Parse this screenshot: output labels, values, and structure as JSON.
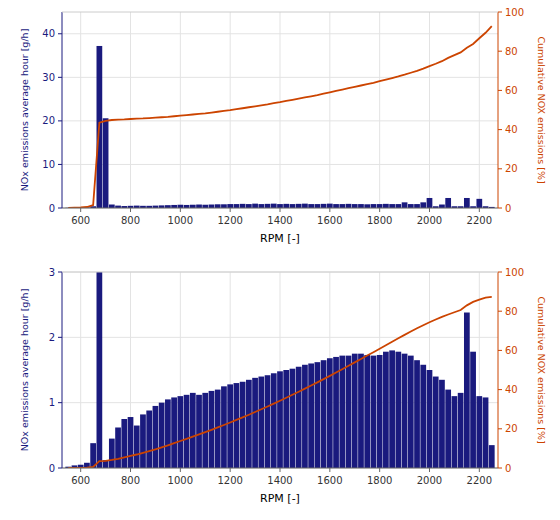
{
  "chart_data": [
    {
      "type": "bar",
      "x": [
        550,
        575,
        600,
        625,
        650,
        675,
        700,
        725,
        750,
        775,
        800,
        825,
        850,
        875,
        900,
        925,
        950,
        975,
        1000,
        1025,
        1050,
        1075,
        1100,
        1125,
        1150,
        1175,
        1200,
        1225,
        1250,
        1275,
        1300,
        1325,
        1350,
        1375,
        1400,
        1425,
        1450,
        1475,
        1500,
        1525,
        1550,
        1575,
        1600,
        1625,
        1650,
        1675,
        1700,
        1725,
        1750,
        1775,
        1800,
        1825,
        1850,
        1875,
        1900,
        1925,
        1950,
        1975,
        2000,
        2025,
        2050,
        2075,
        2100,
        2125,
        2150,
        2175,
        2200,
        2225,
        2250
      ],
      "series": [
        {
          "type": "bar",
          "color": "#1a1a7e",
          "values": [
            0.05,
            0.08,
            0.1,
            0.15,
            0.4,
            37.2,
            20.6,
            0.8,
            0.55,
            0.45,
            0.5,
            0.55,
            0.5,
            0.5,
            0.55,
            0.6,
            0.65,
            0.7,
            0.75,
            0.7,
            0.75,
            0.8,
            0.75,
            0.8,
            0.85,
            0.85,
            0.9,
            0.9,
            0.95,
            0.9,
            1.0,
            0.9,
            0.95,
            1.0,
            0.9,
            0.95,
            0.9,
            0.95,
            1.0,
            0.9,
            0.9,
            0.95,
            1.0,
            0.9,
            0.9,
            0.95,
            0.9,
            0.9,
            0.85,
            0.9,
            0.9,
            0.95,
            0.9,
            0.9,
            1.3,
            0.9,
            0.9,
            1.3,
            2.3,
            0.4,
            0.8,
            2.3,
            0.4,
            0.4,
            2.3,
            0.4,
            2.1,
            0.4,
            0.25
          ]
        },
        {
          "type": "line",
          "axis": "y2",
          "color": "#cc4400",
          "values": [
            0.1,
            0.2,
            0.3,
            0.5,
            1.5,
            43.5,
            44.5,
            44.9,
            45.1,
            45.2,
            45.4,
            45.6,
            45.7,
            45.9,
            46.1,
            46.3,
            46.5,
            46.8,
            47.1,
            47.4,
            47.7,
            48.0,
            48.3,
            48.7,
            49.1,
            49.5,
            49.9,
            50.4,
            50.9,
            51.4,
            51.9,
            52.4,
            52.9,
            53.5,
            54.0,
            54.6,
            55.2,
            55.8,
            56.4,
            57.0,
            57.6,
            58.3,
            59.0,
            59.7,
            60.4,
            61.1,
            61.8,
            62.5,
            63.2,
            63.9,
            64.7,
            65.5,
            66.3,
            67.1,
            68.0,
            69.0,
            70.0,
            71.1,
            72.4,
            73.6,
            74.9,
            76.6,
            78.0,
            79.4,
            81.8,
            83.7,
            86.6,
            89.4,
            92.8
          ]
        }
      ],
      "xlabel": "RPM [-]",
      "ylabel": "NOx emissions average hour [g/h]",
      "y2label": "Cumulative NOX emissions [%]",
      "xlim": [
        525,
        2275
      ],
      "xticks": [
        600,
        800,
        1000,
        1200,
        1400,
        1600,
        1800,
        2000,
        2200
      ],
      "ylim": [
        0,
        45
      ],
      "yticks": [
        0,
        10,
        20,
        30,
        40
      ],
      "y2lim": [
        0,
        100
      ],
      "y2ticks": [
        0,
        20,
        40,
        60,
        80,
        100
      ],
      "grid": true
    },
    {
      "type": "bar",
      "x": [
        550,
        575,
        600,
        625,
        650,
        675,
        700,
        725,
        750,
        775,
        800,
        825,
        850,
        875,
        900,
        925,
        950,
        975,
        1000,
        1025,
        1050,
        1075,
        1100,
        1125,
        1150,
        1175,
        1200,
        1225,
        1250,
        1275,
        1300,
        1325,
        1350,
        1375,
        1400,
        1425,
        1450,
        1475,
        1500,
        1525,
        1550,
        1575,
        1600,
        1625,
        1650,
        1675,
        1700,
        1725,
        1750,
        1775,
        1800,
        1825,
        1850,
        1875,
        1900,
        1925,
        1950,
        1975,
        2000,
        2025,
        2050,
        2075,
        2100,
        2125,
        2150,
        2175,
        2200,
        2225,
        2250
      ],
      "series": [
        {
          "type": "bar",
          "color": "#1a1a7e",
          "values": [
            0.02,
            0.04,
            0.05,
            0.08,
            0.38,
            3.0,
            0.12,
            0.45,
            0.62,
            0.75,
            0.78,
            0.65,
            0.82,
            0.88,
            0.95,
            1.0,
            1.05,
            1.08,
            1.1,
            1.12,
            1.15,
            1.12,
            1.15,
            1.18,
            1.2,
            1.25,
            1.28,
            1.3,
            1.32,
            1.35,
            1.38,
            1.4,
            1.42,
            1.45,
            1.48,
            1.5,
            1.52,
            1.55,
            1.58,
            1.6,
            1.62,
            1.65,
            1.68,
            1.7,
            1.72,
            1.72,
            1.75,
            1.75,
            1.73,
            1.72,
            1.73,
            1.78,
            1.8,
            1.78,
            1.75,
            1.72,
            1.65,
            1.58,
            1.5,
            1.4,
            1.35,
            1.2,
            1.1,
            1.15,
            2.38,
            1.78,
            1.1,
            1.08,
            0.35
          ]
        },
        {
          "type": "line",
          "axis": "y2",
          "color": "#cc4400",
          "values": [
            0.02,
            0.06,
            0.11,
            0.19,
            0.57,
            3.52,
            3.64,
            4.09,
            4.71,
            5.46,
            6.24,
            6.89,
            7.71,
            8.59,
            9.54,
            10.54,
            11.59,
            12.67,
            13.77,
            14.89,
            16.04,
            17.16,
            18.31,
            19.49,
            20.69,
            21.94,
            23.22,
            24.52,
            25.84,
            27.19,
            28.57,
            29.97,
            31.39,
            32.84,
            34.32,
            35.82,
            37.34,
            38.89,
            40.47,
            42.07,
            43.69,
            45.34,
            46.99,
            48.69,
            50.41,
            52.13,
            53.88,
            55.63,
            57.36,
            59.08,
            60.81,
            62.61,
            64.41,
            66.19,
            67.91,
            69.63,
            71.28,
            72.86,
            74.36,
            75.76,
            77.11,
            78.31,
            79.46,
            80.61,
            82.99,
            84.77,
            85.87,
            86.95,
            87.3
          ]
        }
      ],
      "xlabel": "RPM [-]",
      "ylabel": "NOx emissions average hour [g/h]",
      "y2label": "Cumulative NOX emissions [%]",
      "xlim": [
        525,
        2275
      ],
      "xticks": [
        600,
        800,
        1000,
        1200,
        1400,
        1600,
        1800,
        2000,
        2200
      ],
      "ylim": [
        0,
        3
      ],
      "yticks": [
        0,
        1,
        2,
        3
      ],
      "y2lim": [
        0,
        100
      ],
      "y2ticks": [
        0,
        20,
        40,
        60,
        80,
        100
      ],
      "grid": true
    }
  ]
}
